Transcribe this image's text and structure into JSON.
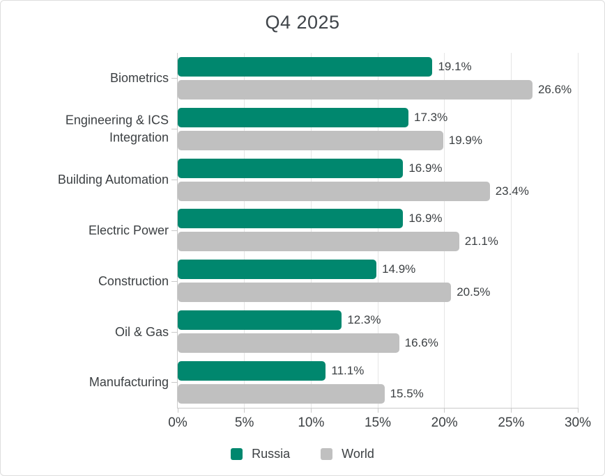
{
  "chart_data": {
    "type": "bar",
    "orientation": "horizontal",
    "title": "Q4 2025",
    "categories": [
      "Biometrics",
      "Engineering & ICS Integration",
      "Building Automation",
      "Electric Power",
      "Construction",
      "Oil & Gas",
      "Manufacturing"
    ],
    "series": [
      {
        "name": "Russia",
        "color": "#00876E",
        "values": [
          19.1,
          17.3,
          16.9,
          16.9,
          14.9,
          12.3,
          11.1
        ]
      },
      {
        "name": "World",
        "color": "#C0C0C0",
        "values": [
          26.6,
          19.9,
          23.4,
          21.1,
          20.5,
          16.6,
          15.5
        ]
      }
    ],
    "value_suffix": "%",
    "xlim": [
      0,
      30
    ],
    "x_ticks": [
      0,
      5,
      10,
      15,
      20,
      25,
      30
    ],
    "x_tick_labels": [
      "0%",
      "5%",
      "10%",
      "15%",
      "20%",
      "25%",
      "30%"
    ],
    "grid": "vertical",
    "legend_position": "bottom",
    "colors": {
      "axis_line": "#C9C9C9",
      "gridline": "#E5E5E5",
      "text": "#3C4043"
    }
  }
}
